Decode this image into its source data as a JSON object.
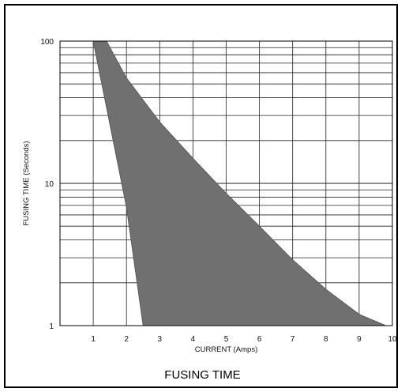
{
  "caption": "FUSING TIME",
  "chart_data": {
    "type": "area",
    "title": "",
    "xlabel": "CURRENT (Amps)",
    "ylabel": "FUSING TIME (Seconds)",
    "xlim": [
      0,
      10
    ],
    "ylim": [
      1,
      100
    ],
    "yscale": "log",
    "grid": true,
    "x_ticks": [
      "1",
      "2",
      "3",
      "4",
      "5",
      "6",
      "7",
      "8",
      "9",
      "10"
    ],
    "y_ticks": [
      "1",
      "10",
      "100"
    ],
    "fill_color": "#707070",
    "series": [
      {
        "boundary": "upper",
        "x": [
          1.4,
          2.0,
          3.0,
          4.0,
          5.0,
          6.0,
          7.0,
          8.0,
          9.0,
          9.8
        ],
        "y": [
          100,
          55,
          27,
          15,
          8.5,
          5.0,
          2.9,
          1.8,
          1.2,
          1.0
        ]
      },
      {
        "boundary": "lower",
        "x": [
          1.0,
          1.5,
          2.0,
          2.5
        ],
        "y": [
          100,
          26,
          6.8,
          1.0
        ]
      }
    ]
  }
}
